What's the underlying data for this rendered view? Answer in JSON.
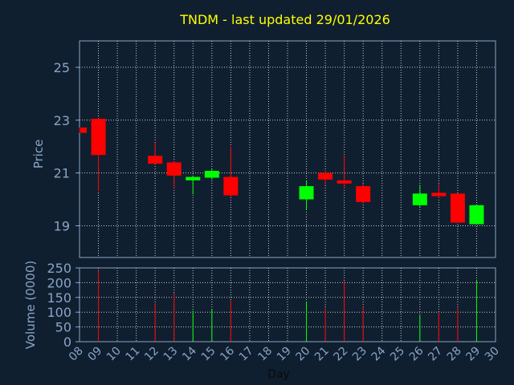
{
  "chart_data": {
    "type": "candlestick",
    "title": "TNDM - last updated 29/01/2026",
    "price_panel": {
      "ylabel": "Price",
      "ylim": [
        17.8,
        26.0
      ],
      "yticks": [
        "19",
        "21",
        "23",
        "25"
      ],
      "ytick_values": [
        19,
        21,
        23,
        25
      ]
    },
    "volume_panel": {
      "ylabel": "Volume (0000)",
      "ylim": [
        0,
        250
      ],
      "yticks": [
        "0",
        "50",
        "100",
        "150",
        "200",
        "250"
      ],
      "ytick_values": [
        0,
        50,
        100,
        150,
        200,
        250
      ]
    },
    "xlabel": "Day",
    "xticks": [
      "08",
      "09",
      "10",
      "11",
      "12",
      "13",
      "14",
      "15",
      "16",
      "17",
      "18",
      "19",
      "20",
      "21",
      "22",
      "23",
      "24",
      "25",
      "26",
      "27",
      "28",
      "29",
      "30"
    ],
    "candles": [
      {
        "day": 8,
        "open": 22.72,
        "close": 22.52,
        "high": 22.72,
        "low": 22.52,
        "volume": 0
      },
      {
        "day": 9,
        "open": 23.05,
        "close": 21.68,
        "high": 23.1,
        "low": 20.3,
        "volume": 240
      },
      {
        "day": 12,
        "open": 21.65,
        "close": 21.35,
        "high": 22.15,
        "low": 21.3,
        "volume": 130
      },
      {
        "day": 13,
        "open": 21.4,
        "close": 20.9,
        "high": 21.45,
        "low": 20.4,
        "volume": 165
      },
      {
        "day": 14,
        "open": 20.72,
        "close": 20.85,
        "high": 20.9,
        "low": 20.2,
        "volume": 105
      },
      {
        "day": 15,
        "open": 20.82,
        "close": 21.08,
        "high": 21.15,
        "low": 20.75,
        "volume": 110
      },
      {
        "day": 16,
        "open": 20.85,
        "close": 20.15,
        "high": 22.0,
        "low": 20.1,
        "volume": 140
      },
      {
        "day": 20,
        "open": 20.0,
        "close": 20.5,
        "high": 20.7,
        "low": 19.6,
        "volume": 135
      },
      {
        "day": 21,
        "open": 21.0,
        "close": 20.75,
        "high": 21.1,
        "low": 20.55,
        "volume": 115
      },
      {
        "day": 22,
        "open": 20.72,
        "close": 20.6,
        "high": 21.65,
        "low": 20.4,
        "volume": 205
      },
      {
        "day": 23,
        "open": 20.5,
        "close": 19.9,
        "high": 20.6,
        "low": 19.85,
        "volume": 118
      },
      {
        "day": 26,
        "open": 19.78,
        "close": 20.22,
        "high": 20.55,
        "low": 19.72,
        "volume": 90
      },
      {
        "day": 27,
        "open": 20.25,
        "close": 20.12,
        "high": 20.6,
        "low": 20.05,
        "volume": 100
      },
      {
        "day": 28,
        "open": 20.22,
        "close": 19.12,
        "high": 20.22,
        "low": 19.12,
        "volume": 115
      },
      {
        "day": 29,
        "open": 19.06,
        "close": 19.78,
        "high": 19.78,
        "low": 19.06,
        "volume": 210
      }
    ],
    "colors": {
      "up": "#00ff00",
      "down": "#ff0000",
      "background": "#0f1f30",
      "title": "#ffff00",
      "axis_text": "#8aa4c4",
      "grid": "#c8c8c8",
      "frame": "#8aa4c4"
    },
    "grid": true
  }
}
